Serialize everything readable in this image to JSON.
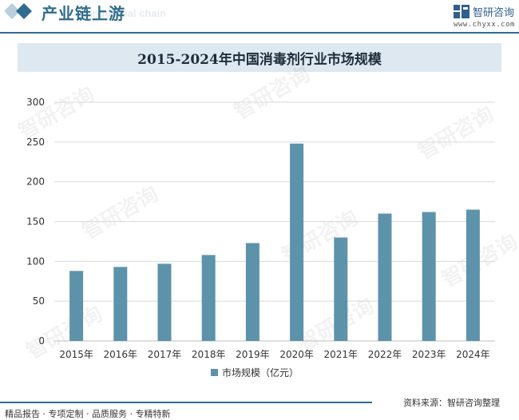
{
  "header": {
    "section_title": "产业链上游",
    "ghost_text": "Industrial chain",
    "brand_name": "智研咨询",
    "brand_url": "www.chyxx.com"
  },
  "watermark_text": "智研咨询",
  "colors": {
    "bar": "#5c93aa",
    "brand": "#2f6c8f",
    "title_band": "#dde8f1",
    "grid": "#d9d9d9"
  },
  "footer": {
    "left": "精品报告 · 专项定制 · 品质服务 · 专精特新",
    "right": "资料来源：智研咨询整理"
  },
  "chart_data": {
    "type": "bar",
    "title": "2015-2024年中国消毒剂行业市场规模",
    "categories": [
      "2015年",
      "2016年",
      "2017年",
      "2018年",
      "2019年",
      "2020年",
      "2021年",
      "2022年",
      "2023年",
      "2024年"
    ],
    "series": [
      {
        "name": "市场规模（亿元）",
        "values": [
          88,
          93,
          97,
          108,
          123,
          248,
          130,
          160,
          162,
          165
        ]
      }
    ],
    "xlabel": "",
    "ylabel": "",
    "ylim": [
      0,
      300
    ],
    "yticks": [
      0,
      50,
      100,
      150,
      200,
      250,
      300
    ],
    "grid": true,
    "legend_position": "bottom"
  }
}
